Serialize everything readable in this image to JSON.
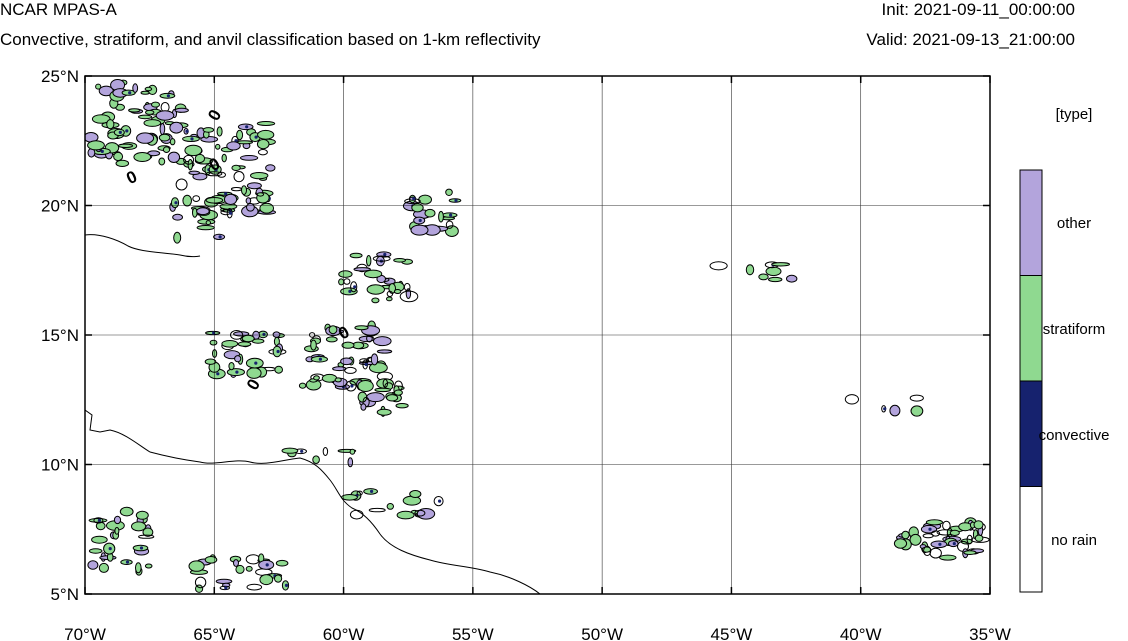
{
  "header": {
    "model": "NCAR MPAS-A",
    "description": "Convective, stratiform, and anvil classification based on 1-km reflectivity",
    "init": "Init: 2021-09-11_00:00:00",
    "valid": "Valid: 2021-09-13_21:00:00"
  },
  "map": {
    "lon_range": [
      -70,
      -35
    ],
    "lat_range": [
      5,
      25
    ],
    "grid": true,
    "lat_labels": [
      "25°N",
      "20°N",
      "15°N",
      "10°N",
      "5°N"
    ],
    "lon_labels": [
      "70°W",
      "65°W",
      "60°W",
      "55°W",
      "50°W",
      "45°W",
      "40°W",
      "35°W"
    ],
    "contour_label": "0"
  },
  "legend": {
    "title": "[type]",
    "items": [
      {
        "label": "other",
        "color": "#b3a4dc"
      },
      {
        "label": "stratiform",
        "color": "#8fd990"
      },
      {
        "label": "convective",
        "color": "#16226e"
      },
      {
        "label": "no rain",
        "color": "#ffffff"
      }
    ]
  }
}
